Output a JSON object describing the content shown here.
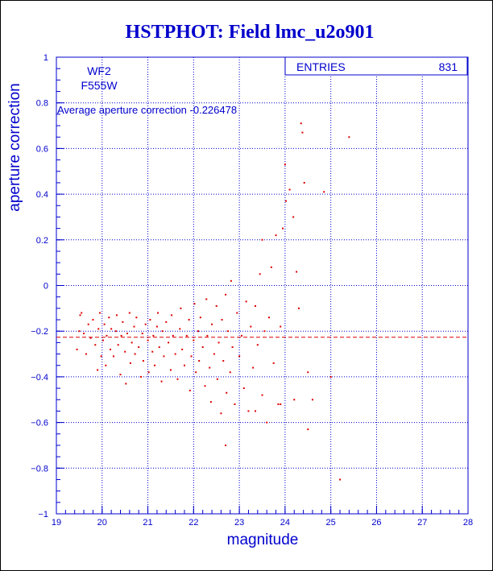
{
  "chart_data": {
    "type": "scatter",
    "title": "HSTPHOT: Field lmc_u2o901",
    "xlabel": "magnitude",
    "ylabel": "aperture correction",
    "xlim": [
      19,
      28
    ],
    "ylim": [
      -1,
      1
    ],
    "x_ticks": [
      "19",
      "20",
      "21",
      "22",
      "23",
      "24",
      "25",
      "26",
      "27",
      "28"
    ],
    "y_ticks": [
      "-1",
      "-0.8",
      "-0.6",
      "-0.4",
      "-0.2",
      "0",
      "0.2",
      "0.4",
      "0.6",
      "0.8",
      "1"
    ],
    "grid": true,
    "annotations": {
      "chip": "WF2",
      "filter": "F555W",
      "average_text": "Average aperture correction -0.226478"
    },
    "stats_box": {
      "label": "ENTRIES",
      "value": "831"
    },
    "reference_line": {
      "y": -0.226478,
      "style": "dashed"
    },
    "series": [
      {
        "points": [
          [
            19.45,
            -0.28
          ],
          [
            19.5,
            -0.2
          ],
          [
            19.52,
            -0.13
          ],
          [
            19.55,
            -0.12
          ],
          [
            19.6,
            -0.21
          ],
          [
            19.65,
            -0.3
          ],
          [
            19.7,
            -0.17
          ],
          [
            19.75,
            -0.23
          ],
          [
            19.8,
            -0.15
          ],
          [
            19.85,
            -0.26
          ],
          [
            19.9,
            -0.37
          ],
          [
            19.92,
            -0.19
          ],
          [
            19.95,
            -0.12
          ],
          [
            19.98,
            -0.31
          ],
          [
            20.02,
            -0.24
          ],
          [
            20.05,
            -0.17
          ],
          [
            20.08,
            -0.35
          ],
          [
            20.1,
            -0.22
          ],
          [
            20.15,
            -0.14
          ],
          [
            20.18,
            -0.28
          ],
          [
            20.2,
            -0.19
          ],
          [
            20.25,
            -0.31
          ],
          [
            20.3,
            -0.2
          ],
          [
            20.32,
            -0.13
          ],
          [
            20.35,
            -0.26
          ],
          [
            20.4,
            -0.39
          ],
          [
            20.42,
            -0.22
          ],
          [
            20.45,
            -0.16
          ],
          [
            20.5,
            -0.29
          ],
          [
            20.52,
            -0.43
          ],
          [
            20.55,
            -0.21
          ],
          [
            20.6,
            -0.12
          ],
          [
            20.62,
            -0.34
          ],
          [
            20.65,
            -0.25
          ],
          [
            20.7,
            -0.18
          ],
          [
            20.72,
            -0.3
          ],
          [
            20.75,
            -0.14
          ],
          [
            20.8,
            -0.27
          ],
          [
            20.85,
            -0.4
          ],
          [
            20.88,
            -0.21
          ],
          [
            20.9,
            -0.33
          ],
          [
            20.95,
            -0.17
          ],
          [
            21.0,
            -0.24
          ],
          [
            21.02,
            -0.38
          ],
          [
            21.05,
            -0.15
          ],
          [
            21.1,
            -0.29
          ],
          [
            21.12,
            -0.22
          ],
          [
            21.15,
            -0.35
          ],
          [
            21.2,
            -0.18
          ],
          [
            21.22,
            -0.12
          ],
          [
            21.25,
            -0.27
          ],
          [
            21.3,
            -0.42
          ],
          [
            21.32,
            -0.2
          ],
          [
            21.35,
            -0.31
          ],
          [
            21.4,
            -0.16
          ],
          [
            21.45,
            -0.25
          ],
          [
            21.5,
            -0.37
          ],
          [
            21.52,
            -0.13
          ],
          [
            21.55,
            -0.22
          ],
          [
            21.6,
            -0.3
          ],
          [
            21.65,
            -0.41
          ],
          [
            21.7,
            -0.19
          ],
          [
            21.72,
            -0.1
          ],
          [
            21.75,
            -0.28
          ],
          [
            21.8,
            -0.35
          ],
          [
            21.85,
            -0.22
          ],
          [
            21.9,
            -0.15
          ],
          [
            21.92,
            -0.46
          ],
          [
            21.95,
            -0.31
          ],
          [
            22.0,
            -0.24
          ],
          [
            22.02,
            -0.08
          ],
          [
            22.05,
            -0.38
          ],
          [
            22.1,
            -0.2
          ],
          [
            22.12,
            -0.33
          ],
          [
            22.15,
            -0.14
          ],
          [
            22.2,
            -0.27
          ],
          [
            22.25,
            -0.44
          ],
          [
            22.28,
            -0.06
          ],
          [
            22.3,
            -0.22
          ],
          [
            22.35,
            -0.36
          ],
          [
            22.38,
            -0.51
          ],
          [
            22.4,
            -0.17
          ],
          [
            22.45,
            -0.3
          ],
          [
            22.5,
            -0.09
          ],
          [
            22.52,
            -0.41
          ],
          [
            22.55,
            -0.25
          ],
          [
            22.6,
            -0.56
          ],
          [
            22.62,
            -0.15
          ],
          [
            22.65,
            -0.33
          ],
          [
            22.7,
            -0.04
          ],
          [
            22.72,
            -0.47
          ],
          [
            22.75,
            -0.2
          ],
          [
            22.8,
            -0.38
          ],
          [
            22.82,
            0.02
          ],
          [
            22.85,
            -0.27
          ],
          [
            22.9,
            -0.52
          ],
          [
            22.95,
            -0.12
          ],
          [
            23.0,
            -0.31
          ],
          [
            23.05,
            -0.22
          ],
          [
            23.1,
            -0.45
          ],
          [
            23.15,
            -0.07
          ],
          [
            23.2,
            -0.55
          ],
          [
            23.25,
            -0.18
          ],
          [
            23.3,
            -0.36
          ],
          [
            23.35,
            -0.09
          ],
          [
            23.4,
            -0.26
          ],
          [
            23.45,
            0.05
          ],
          [
            23.5,
            -0.48
          ],
          [
            23.55,
            -0.2
          ],
          [
            23.6,
            -0.6
          ],
          [
            23.65,
            -0.14
          ],
          [
            23.7,
            0.08
          ],
          [
            23.75,
            -0.34
          ],
          [
            23.8,
            0.22
          ],
          [
            23.85,
            -0.52
          ],
          [
            23.9,
            -0.18
          ],
          [
            23.95,
            0.25
          ],
          [
            24.0,
            0.53
          ],
          [
            24.02,
            0.37
          ],
          [
            24.1,
            0.42
          ],
          [
            24.18,
            0.3
          ],
          [
            24.25,
            0.06
          ],
          [
            24.35,
            0.71
          ],
          [
            24.38,
            0.67
          ],
          [
            24.42,
            0.45
          ],
          [
            24.5,
            -0.38
          ],
          [
            24.6,
            -0.5
          ],
          [
            24.85,
            0.41
          ],
          [
            25.0,
            -0.4
          ],
          [
            25.2,
            -0.85
          ],
          [
            25.4,
            0.65
          ],
          [
            24.5,
            -0.63
          ],
          [
            22.7,
            -0.7
          ],
          [
            23.35,
            -0.55
          ],
          [
            23.5,
            0.2
          ],
          [
            24.3,
            -0.1
          ],
          [
            24.2,
            -0.5
          ],
          [
            23.9,
            -0.52
          ]
        ]
      }
    ]
  },
  "colors": {
    "axis": "#0000cc",
    "grid": "#0000cc",
    "points": "#dd0000",
    "title": "#0000cc",
    "background": "#ffffff"
  }
}
